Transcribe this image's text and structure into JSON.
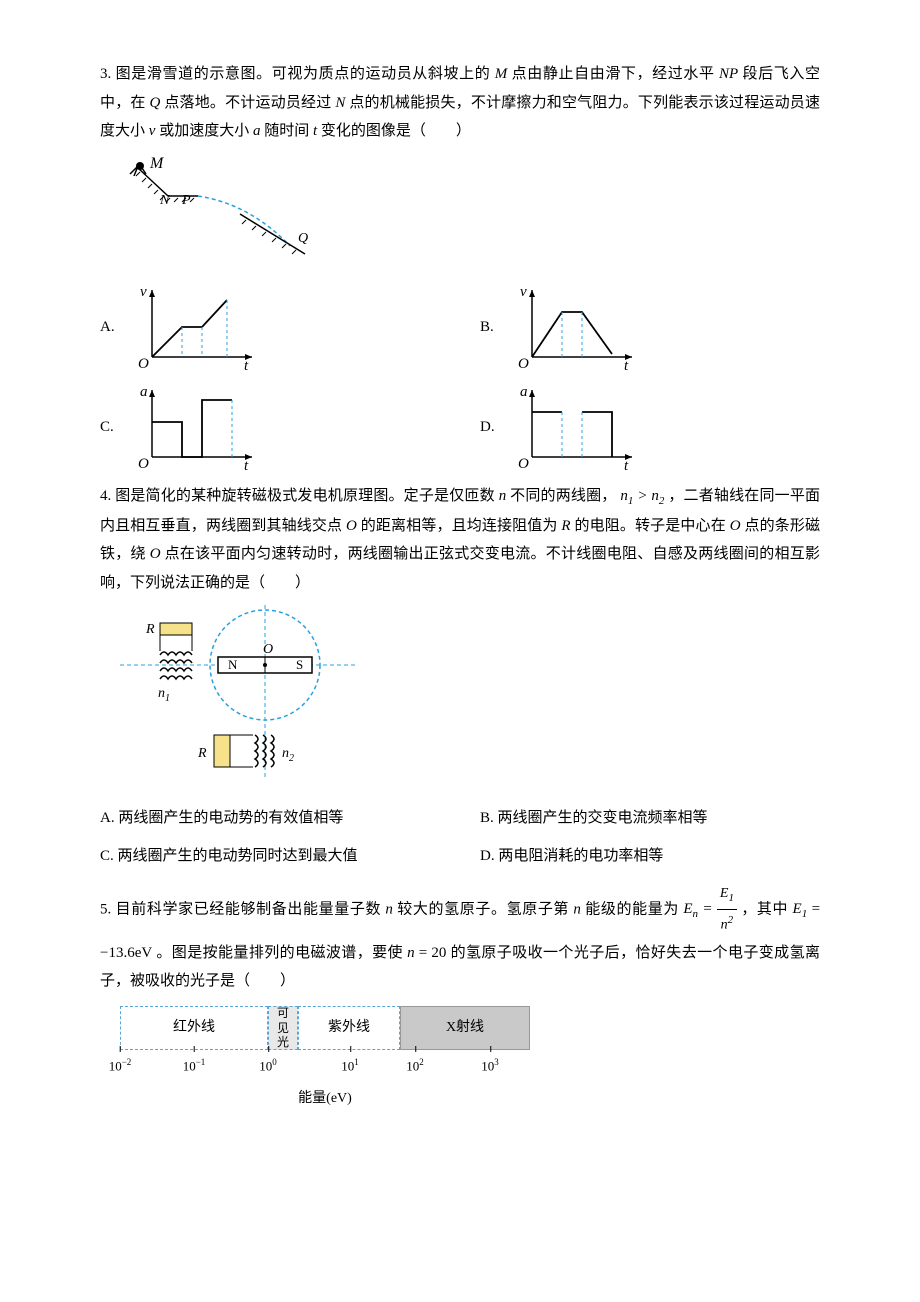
{
  "q3": {
    "number": "3.",
    "text_1": "图是滑雪道的示意图。可视为质点的运动员从斜坡上的 ",
    "text_2": " 点由静止自由滑下，经过水平 ",
    "text_3": " 段后飞入空中，在 ",
    "text_4": " 点落地。不计运动员经过 ",
    "text_5": " 点的机械能损失，不计摩擦力和空气阻力。下列能表示该过程运动员速度大小 ",
    "text_6": " 或加速度大小 ",
    "text_7": " 随时间 ",
    "text_8": " 变化的图像是（　　）",
    "symbols": {
      "M": "M",
      "NP": "NP",
      "Q": "Q",
      "N": "N",
      "v": "v",
      "a": "a",
      "t": "t",
      "P": "P",
      "O": "O"
    },
    "options": {
      "A": "A.",
      "B": "B.",
      "C": "C.",
      "D": "D."
    },
    "graph_colors": {
      "axis": "#000000",
      "dash": "#28a0e0",
      "line": "#000000"
    }
  },
  "q4": {
    "number": "4.",
    "text_1": "图是简化的某种旋转磁极式发电机原理图。定子是仅匝数 ",
    "text_2": " 不同的两线圈，",
    "text_3": "，二者轴线在同一平面内且相互垂直，两线圈到其轴线交点 ",
    "text_4": " 的距离相等，且均连接阻值为 ",
    "text_5": " 的电阻。转子是中心在 ",
    "text_6": " 点的条形磁铁，绕 ",
    "text_7": " 点在该平面内匀速转动时，两线圈输出正弦式交变电流。不计线圈电阻、自感及两线圈间的相互影响，下列说法正确的是（　　）",
    "symbols": {
      "n": "n",
      "n1": "n",
      "n1_sub": "1",
      "gt": " > ",
      "n2": "n",
      "n2_sub": "2",
      "O": "O",
      "R": "R",
      "N_pole": "N",
      "S_pole": "S"
    },
    "options": {
      "A": "A. 两线圈产生的电动势的有效值相等",
      "B": "B. 两线圈产生的交变电流频率相等",
      "C": "C. 两线圈产生的电动势同时达到最大值",
      "D": "D. 两电阻消耗的电功率相等"
    },
    "fig_colors": {
      "dash": "#28a0e0",
      "outline": "#000000",
      "resistor": "#f5e28a"
    }
  },
  "q5": {
    "number": "5.",
    "text_1": "目前科学家已经能够制备出能量量子数 ",
    "text_2": " 较大的氢原子。氢原子第 ",
    "text_3": " 能级的能量为 ",
    "text_4": "，其中 ",
    "text_5": "。图是按能量排列的电磁波谱，要使 ",
    "text_6": " 的氢原子吸收一个光子后，恰好失去一个电子变成氢离子，被吸收的光子是（　　）",
    "symbols": {
      "n": "n",
      "E": "E",
      "n_sub": "n",
      "eq": " = ",
      "E1": "E",
      "one": "1",
      "n2": "n",
      "sq": "2",
      "E1val": " = −13.6eV",
      "n20": " = 20"
    },
    "spectrum": {
      "bands": [
        {
          "label": "红外线",
          "width": 148,
          "class": ""
        },
        {
          "label": "可见光",
          "width": 30,
          "class": "vis"
        },
        {
          "label": "紫外线",
          "width": 102,
          "class": ""
        },
        {
          "label": "X射线",
          "width": 130,
          "class": "gray"
        }
      ],
      "ticks": [
        {
          "label": "10",
          "exp": "−2",
          "pos": 0
        },
        {
          "label": "10",
          "exp": "−1",
          "pos": 74
        },
        {
          "label": "10",
          "exp": "0",
          "pos": 148
        },
        {
          "label": "10",
          "exp": "1",
          "pos": 230
        },
        {
          "label": "10",
          "exp": "2",
          "pos": 295
        },
        {
          "label": "10",
          "exp": "3",
          "pos": 370
        }
      ],
      "axis_label": "能量(eV)"
    }
  }
}
